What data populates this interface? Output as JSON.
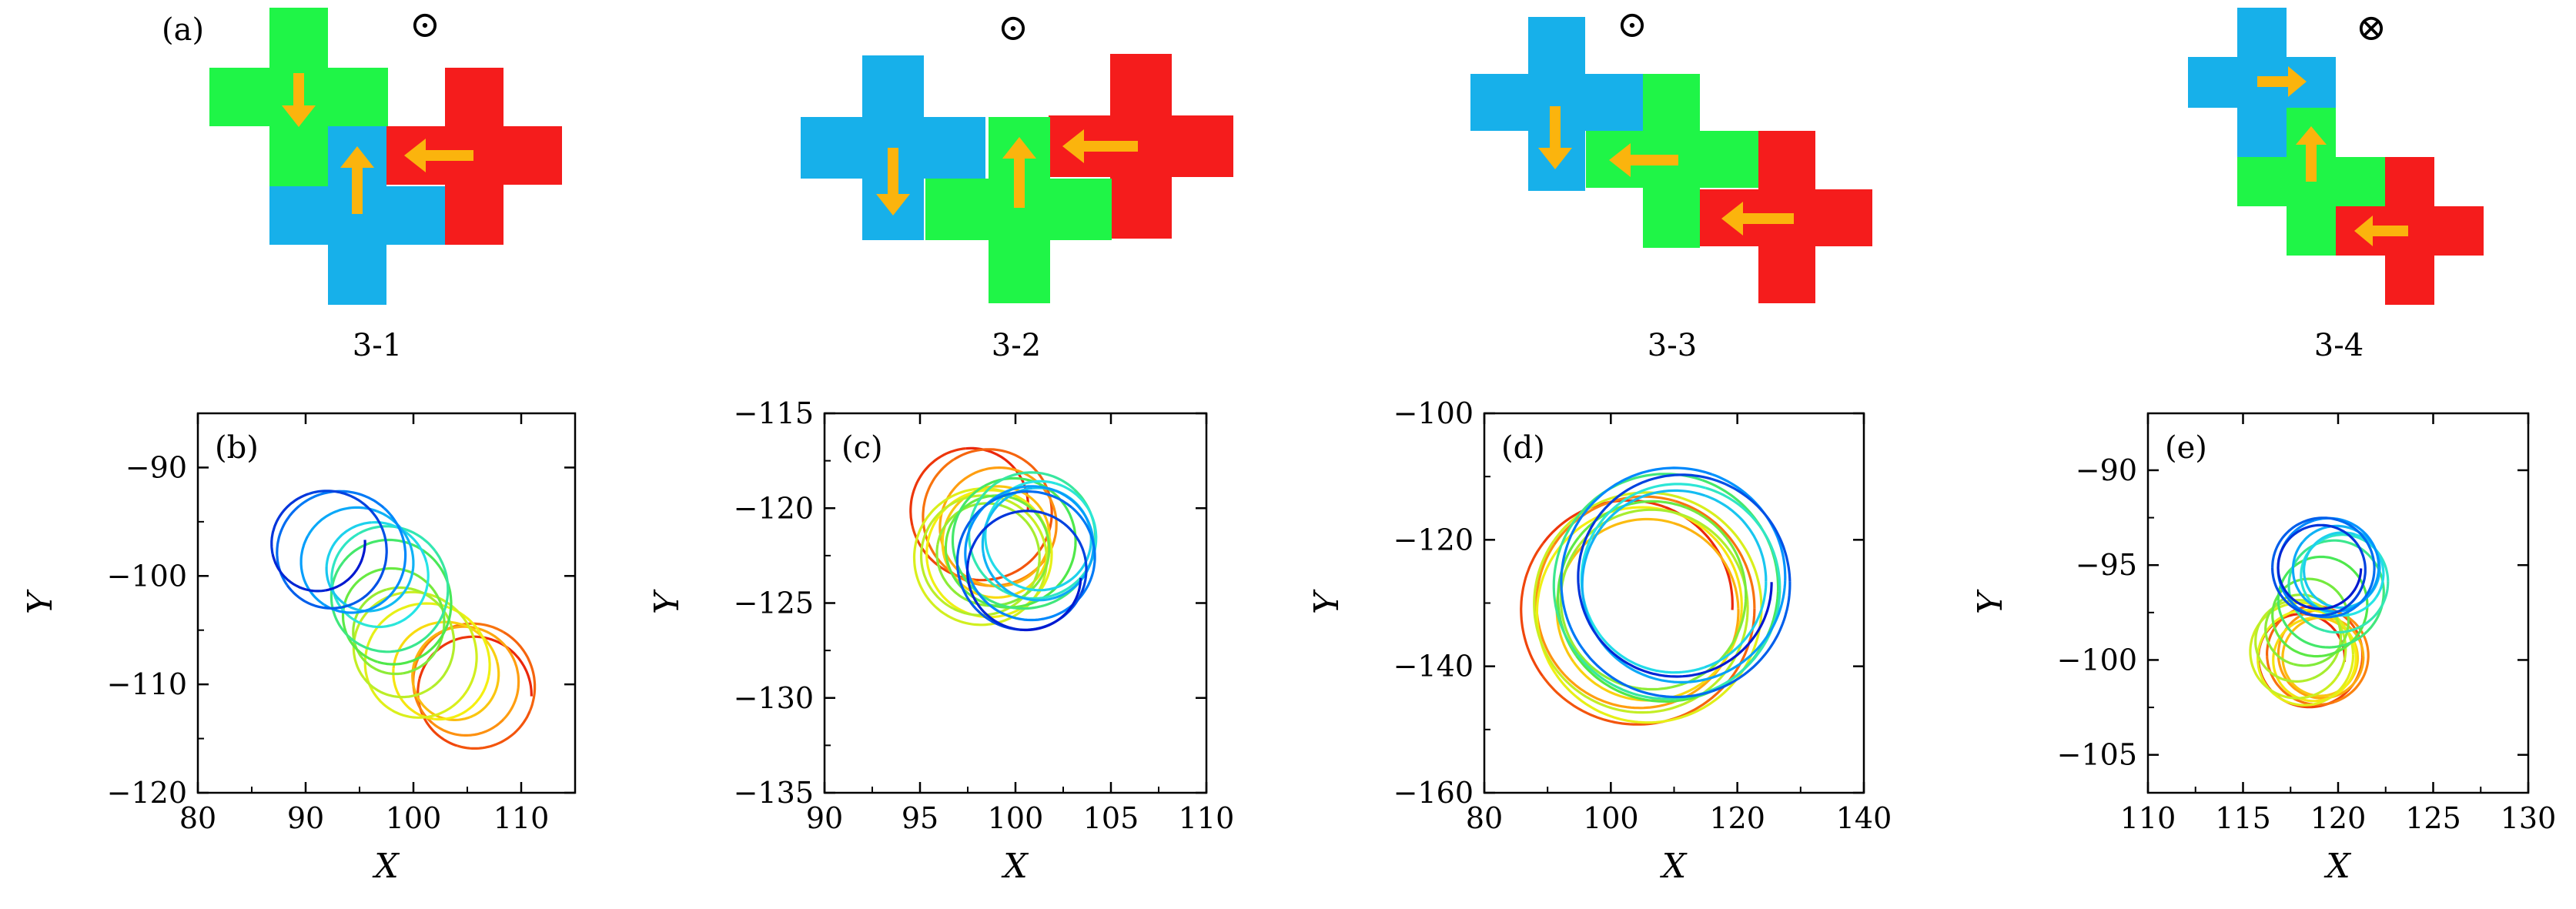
{
  "panels_top": [
    {
      "label": "(a)",
      "caption": "3-1",
      "symbol": "⊙"
    },
    {
      "label": "",
      "caption": "3-2",
      "symbol": "⊙"
    },
    {
      "label": "",
      "caption": "3-3",
      "symbol": "⊙"
    },
    {
      "label": "",
      "caption": "3-4",
      "symbol": "⊗"
    }
  ],
  "colors": {
    "blue": "#17b0ea",
    "green": "#1ff547",
    "red": "#f51c1c",
    "arrow": "#fbb40d",
    "trajectory_colormap": [
      "#0018d0",
      "#0090ff",
      "#27e6e6",
      "#4be84b",
      "#b6ee2a",
      "#f5f010",
      "#ff9a10",
      "#e8180a"
    ]
  },
  "chart_data": [
    {
      "type": "line",
      "label": "(b)",
      "xlabel": "X",
      "ylabel": "Y",
      "xlim": [
        80,
        115
      ],
      "ylim": [
        -120,
        -85
      ],
      "xticks": [
        80,
        90,
        100,
        110
      ],
      "yticks": [
        -90,
        -100,
        -110,
        -120
      ],
      "x_tick_labels": [
        "80",
        "90",
        "100",
        "110"
      ],
      "y_tick_labels": [
        "−90",
        "−100",
        "−110",
        "−120"
      ],
      "trajectory": {
        "start": [
          106,
          -112
        ],
        "end": [
          92,
          -96
        ],
        "radius": 5.5,
        "loops": 14
      }
    },
    {
      "type": "line",
      "label": "(c)",
      "xlabel": "X",
      "ylabel": "Y",
      "xlim": [
        90,
        110
      ],
      "ylim": [
        -135,
        -115
      ],
      "xticks": [
        90,
        95,
        100,
        105,
        110
      ],
      "yticks": [
        -115,
        -120,
        -125,
        -130,
        -135
      ],
      "x_tick_labels": [
        "90",
        "95",
        "100",
        "105",
        "110"
      ],
      "y_tick_labels": [
        "−115",
        "−120",
        "−125",
        "−130",
        "−135"
      ],
      "trajectory": {
        "start": [
          97.5,
          -121
        ],
        "end": [
          101.5,
          -123
        ],
        "radius": 3.5,
        "loops": 16
      }
    },
    {
      "type": "line",
      "label": "(d)",
      "xlabel": "X",
      "ylabel": "Y",
      "xlim": [
        80,
        140
      ],
      "ylim": [
        -160,
        -100
      ],
      "xticks": [
        80,
        100,
        120,
        140
      ],
      "yticks": [
        -100,
        -120,
        -140,
        -160
      ],
      "x_tick_labels": [
        "80",
        "100",
        "120",
        "140"
      ],
      "y_tick_labels": [
        "−100",
        "−120",
        "−140",
        "−160"
      ],
      "trajectory": {
        "start": [
          103,
          -132
        ],
        "end": [
          112,
          -126
        ],
        "radius": 18,
        "loops": 12
      }
    },
    {
      "type": "line",
      "label": "(e)",
      "xlabel": "X",
      "ylabel": "Y",
      "xlim": [
        110,
        130
      ],
      "ylim": [
        -107,
        -87
      ],
      "xticks": [
        110,
        115,
        120,
        125,
        130
      ],
      "yticks": [
        -90,
        -95,
        -100,
        -105
      ],
      "x_tick_labels": [
        "110",
        "115",
        "120",
        "125",
        "130"
      ],
      "y_tick_labels": [
        "−90",
        "−95",
        "−100",
        "−105"
      ],
      "trajectory": {
        "start": [
          118,
          -101
        ],
        "end": [
          120,
          -94.5
        ],
        "radius": 2.6,
        "loops": 18
      }
    }
  ]
}
